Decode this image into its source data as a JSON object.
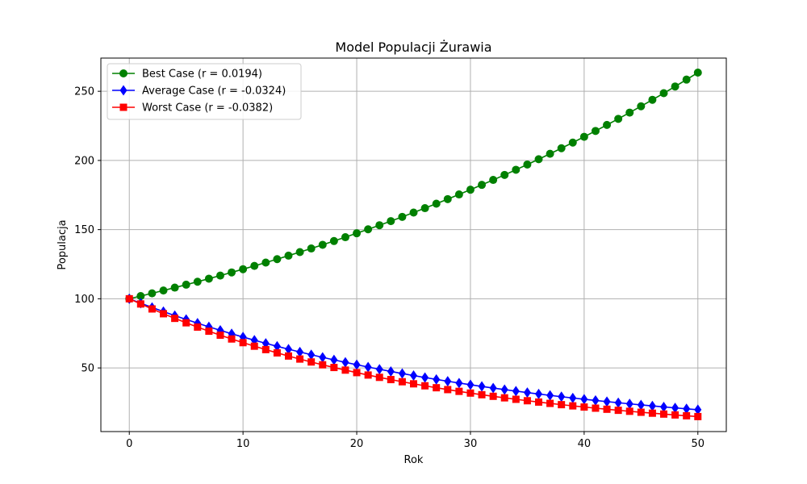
{
  "chart_data": {
    "type": "line",
    "title": "Model Populacji Żurawia",
    "xlabel": "Rok",
    "ylabel": "Populacja",
    "xlim": [
      -2.5,
      52.5
    ],
    "ylim": [
      4,
      274
    ],
    "x_ticks": [
      0,
      10,
      20,
      30,
      40,
      50
    ],
    "y_ticks": [
      50,
      100,
      150,
      200,
      250
    ],
    "grid": true,
    "legend_position": "top-left",
    "x": [
      0,
      1,
      2,
      3,
      4,
      5,
      6,
      7,
      8,
      9,
      10,
      11,
      12,
      13,
      14,
      15,
      16,
      17,
      18,
      19,
      20,
      21,
      22,
      23,
      24,
      25,
      26,
      27,
      28,
      29,
      30,
      31,
      32,
      33,
      34,
      35,
      36,
      37,
      38,
      39,
      40,
      41,
      42,
      43,
      44,
      45,
      46,
      47,
      48,
      49,
      50
    ],
    "series": [
      {
        "name": "Best Case (r = 0.0194)",
        "color": "#008000",
        "marker": "circle",
        "values": [
          100.0,
          101.96,
          103.95,
          105.99,
          108.06,
          110.18,
          112.33,
          114.53,
          116.77,
          119.06,
          121.39,
          123.76,
          126.18,
          128.65,
          131.17,
          133.74,
          136.36,
          139.02,
          141.74,
          144.52,
          147.35,
          150.23,
          153.17,
          156.16,
          159.22,
          162.33,
          165.51,
          168.75,
          172.05,
          175.42,
          178.85,
          182.35,
          185.91,
          189.55,
          193.26,
          197.04,
          200.9,
          204.83,
          208.83,
          212.92,
          217.09,
          221.33,
          225.66,
          230.08,
          234.58,
          239.17,
          243.85,
          248.62,
          253.48,
          258.44,
          263.5
        ]
      },
      {
        "name": "Average Case (r = -0.0324)",
        "color": "#0000ff",
        "marker": "diamond",
        "values": [
          100.0,
          96.81,
          93.73,
          90.74,
          87.85,
          85.05,
          82.34,
          79.72,
          77.18,
          74.72,
          72.34,
          70.03,
          67.8,
          65.64,
          63.55,
          61.52,
          59.56,
          57.66,
          55.83,
          54.05,
          52.32,
          50.66,
          49.04,
          47.48,
          45.96,
          44.5,
          43.08,
          41.71,
          40.38,
          39.09,
          37.84,
          36.64,
          35.47,
          34.34,
          33.25,
          32.19,
          31.16,
          30.17,
          29.21,
          28.28,
          27.38,
          26.5,
          25.66,
          24.84,
          24.05,
          23.28,
          22.54,
          21.82,
          21.13,
          20.45,
          19.8
        ]
      },
      {
        "name": "Worst Case (r = -0.0382)",
        "color": "#ff0000",
        "marker": "square",
        "values": [
          100.0,
          96.25,
          92.65,
          89.18,
          85.84,
          82.63,
          79.53,
          76.56,
          73.69,
          70.93,
          68.28,
          65.72,
          63.26,
          60.89,
          58.61,
          56.42,
          54.31,
          52.27,
          50.32,
          48.43,
          46.62,
          44.87,
          43.19,
          41.58,
          40.02,
          38.52,
          37.08,
          35.69,
          34.35,
          33.07,
          31.83,
          30.64,
          29.49,
          28.39,
          27.33,
          26.3,
          25.32,
          24.37,
          23.46,
          22.58,
          21.73,
          20.92,
          20.14,
          19.38,
          18.66,
          17.96,
          17.29,
          16.64,
          16.02,
          15.42,
          14.84
        ]
      }
    ]
  }
}
